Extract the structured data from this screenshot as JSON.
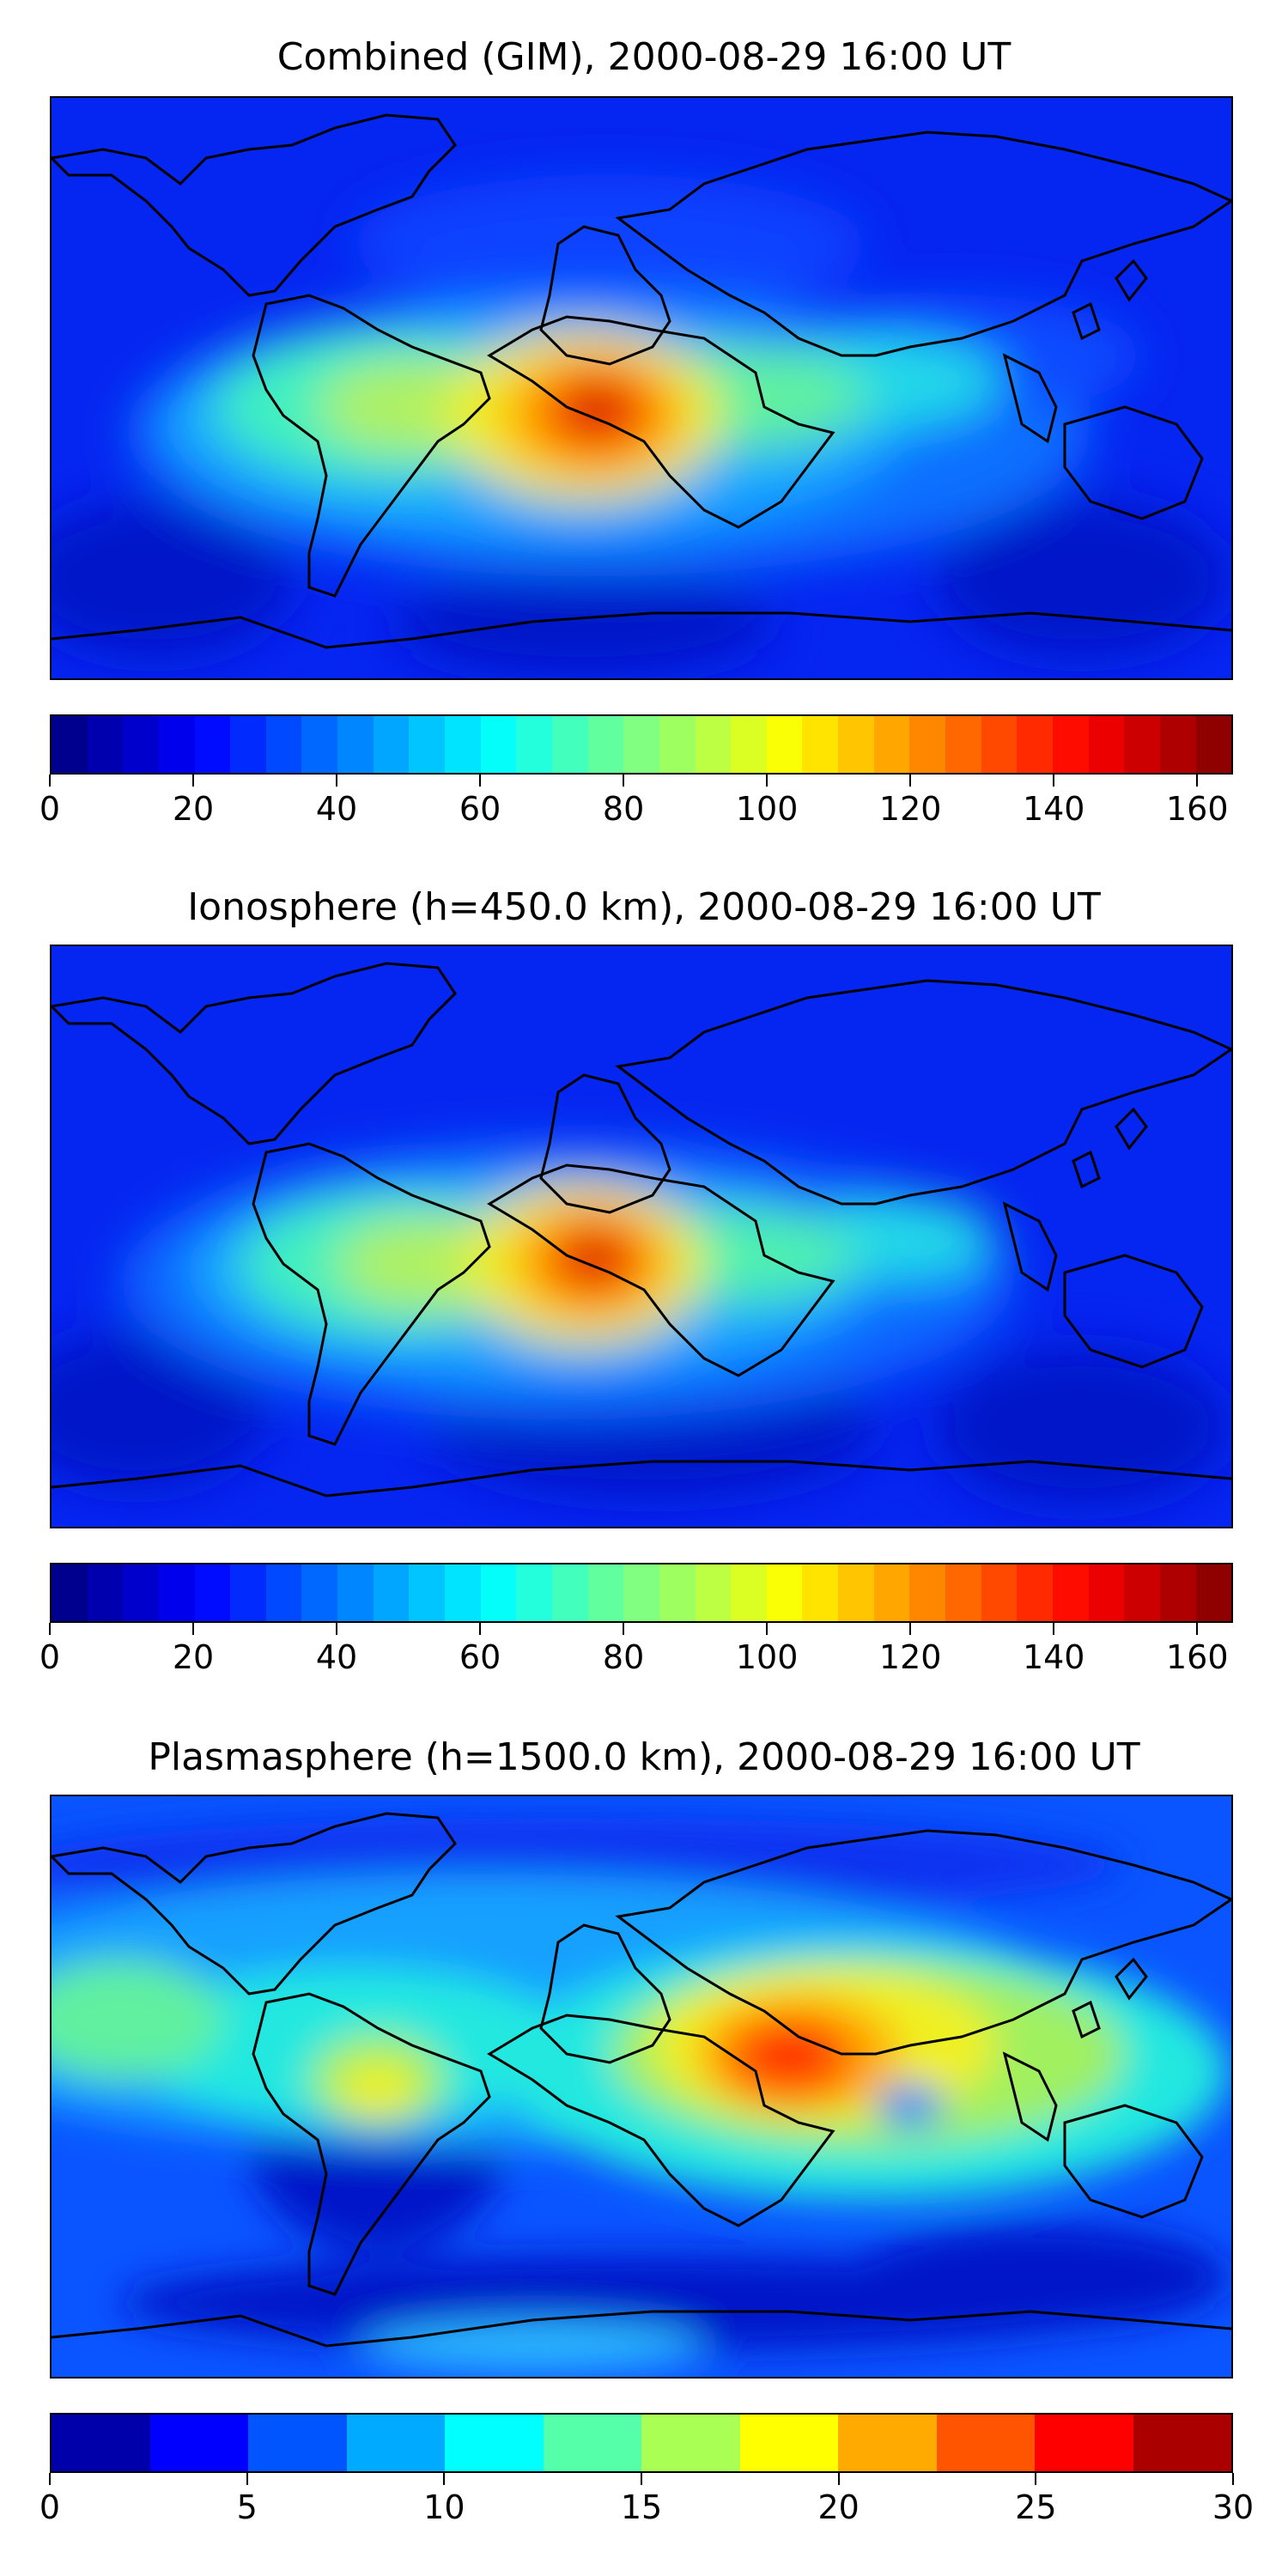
{
  "panels": [
    {
      "title": "Combined (GIM), 2000-08-29 16:00 UT",
      "base_color": "#0525f0",
      "colorbar": {
        "min": 0,
        "max": 165,
        "levels": 33,
        "ticks": [
          0,
          20,
          40,
          60,
          80,
          100,
          120,
          140,
          160
        ],
        "tick_labels": [
          "0",
          "20",
          "40",
          "60",
          "80",
          "100",
          "120",
          "140",
          "160"
        ]
      }
    },
    {
      "title": "Ionosphere  (h=450.0 km), 2000-08-29 16:00 UT",
      "base_color": "#0525f0",
      "colorbar": {
        "min": 0,
        "max": 165,
        "levels": 33,
        "ticks": [
          0,
          20,
          40,
          60,
          80,
          100,
          120,
          140,
          160
        ],
        "tick_labels": [
          "0",
          "20",
          "40",
          "60",
          "80",
          "100",
          "120",
          "140",
          "160"
        ]
      }
    },
    {
      "title": "Plasmasphere (h=1500.0 km), 2000-08-29 16:00 UT",
      "base_color": "#0a55ff",
      "colorbar": {
        "min": 0,
        "max": 30,
        "levels": 12,
        "ticks": [
          0,
          5,
          10,
          15,
          20,
          25,
          30
        ],
        "tick_labels": [
          "0",
          "5",
          "10",
          "15",
          "20",
          "25",
          "30"
        ]
      }
    }
  ],
  "colormap": "jet",
  "coastline_color": "#000000"
}
